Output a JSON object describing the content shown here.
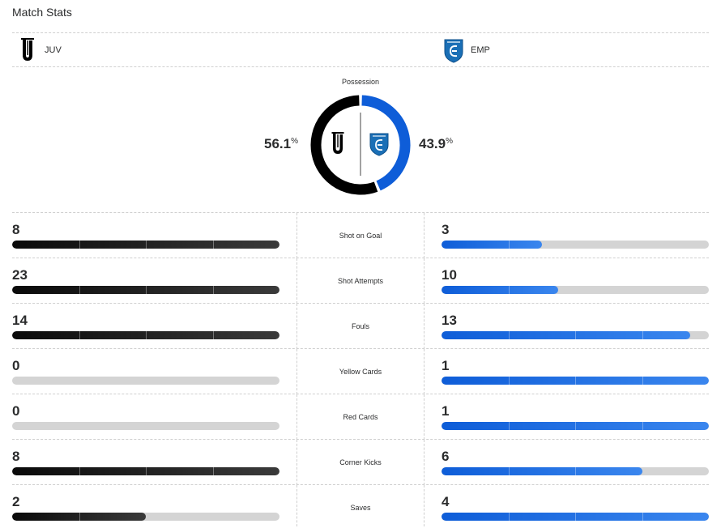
{
  "header": {
    "title": "Match Stats"
  },
  "teams": {
    "home": {
      "abbr": "JUV",
      "logo_icon": "juventus-logo-icon",
      "color": "#000000"
    },
    "away": {
      "abbr": "EMP",
      "logo_icon": "empoli-logo-icon",
      "color": "#0e5dd8"
    }
  },
  "possession": {
    "label": "Possession",
    "home_value": "56.1",
    "away_value": "43.9",
    "unit": "%",
    "home_fraction": 0.561,
    "away_fraction": 0.439
  },
  "stats": [
    {
      "label": "Shot on Goal",
      "home": "8",
      "away": "3",
      "home_fraction": 1.0,
      "away_fraction": 0.375
    },
    {
      "label": "Shot Attempts",
      "home": "23",
      "away": "10",
      "home_fraction": 1.0,
      "away_fraction": 0.435
    },
    {
      "label": "Fouls",
      "home": "14",
      "away": "13",
      "home_fraction": 1.0,
      "away_fraction": 0.929
    },
    {
      "label": "Yellow Cards",
      "home": "0",
      "away": "1",
      "home_fraction": 0.0,
      "away_fraction": 1.0
    },
    {
      "label": "Red Cards",
      "home": "0",
      "away": "1",
      "home_fraction": 0.0,
      "away_fraction": 1.0
    },
    {
      "label": "Corner Kicks",
      "home": "8",
      "away": "6",
      "home_fraction": 1.0,
      "away_fraction": 0.75
    },
    {
      "label": "Saves",
      "home": "2",
      "away": "4",
      "home_fraction": 0.5,
      "away_fraction": 1.0
    }
  ]
}
